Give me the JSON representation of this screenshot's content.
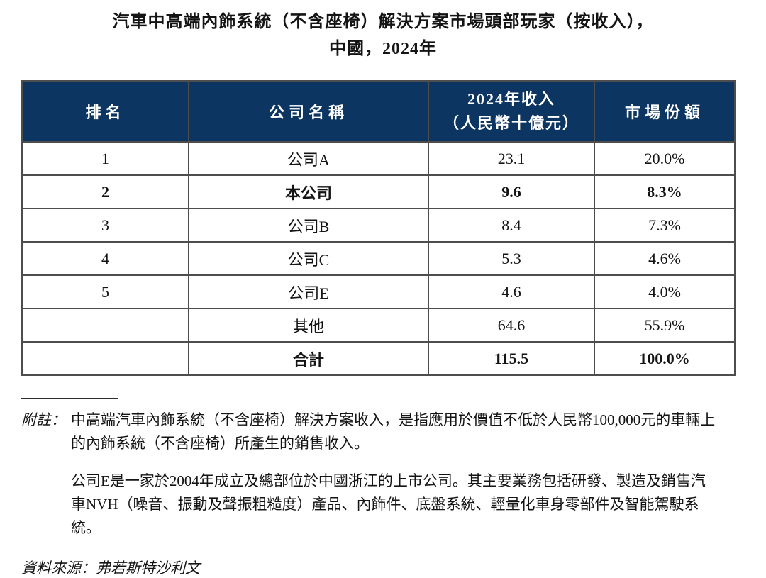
{
  "title": {
    "line1": "汽車中高端內飾系統（不含座椅）解決方案市場頭部玩家（按收入），",
    "line2": "中國，2024年"
  },
  "table": {
    "headers": {
      "rank": "排名",
      "company": "公司名稱",
      "revenue_line1": "2024年收入",
      "revenue_line2": "（人民幣十億元）",
      "share": "市場份額"
    },
    "rows": [
      {
        "rank": "1",
        "company": "公司A",
        "revenue": "23.1",
        "share": "20.0%",
        "bold": false
      },
      {
        "rank": "2",
        "company": "本公司",
        "revenue": "9.6",
        "share": "8.3%",
        "bold": true
      },
      {
        "rank": "3",
        "company": "公司B",
        "revenue": "8.4",
        "share": "7.3%",
        "bold": false
      },
      {
        "rank": "4",
        "company": "公司C",
        "revenue": "5.3",
        "share": "4.6%",
        "bold": false
      },
      {
        "rank": "5",
        "company": "公司E",
        "revenue": "4.6",
        "share": "4.0%",
        "bold": false
      },
      {
        "rank": "",
        "company": "其他",
        "revenue": "64.6",
        "share": "55.9%",
        "bold": false
      },
      {
        "rank": "",
        "company": "合計",
        "revenue": "115.5",
        "share": "100.0%",
        "bold": true
      }
    ]
  },
  "notes": {
    "label": "附註：",
    "note1": "中高端汽車內飾系統（不含座椅）解決方案收入，是指應用於價值不低於人民幣100,000元的車輛上的內飾系統（不含座椅）所產生的銷售收入。",
    "note2": "公司E是一家於2004年成立及總部位於中國浙江的上市公司。其主要業務包括研發、製造及銷售汽車NVH（噪音、振動及聲振粗糙度）產品、內飾件、底盤系統、輕量化車身零部件及智能駕駛系統。",
    "source": "資料來源：弗若斯特沙利文"
  },
  "colors": {
    "header_bg": "#0d3561",
    "header_text": "#ffffff",
    "border": "#4d4d4d"
  },
  "chart_data": {
    "type": "table",
    "title": "汽車中高端內飾系統（不含座椅）解決方案市場頭部玩家（按收入），中國，2024年",
    "columns": [
      "排名",
      "公司名稱",
      "2024年收入（人民幣十億元）",
      "市場份額"
    ],
    "rows": [
      [
        "1",
        "公司A",
        23.1,
        "20.0%"
      ],
      [
        "2",
        "本公司",
        9.6,
        "8.3%"
      ],
      [
        "3",
        "公司B",
        8.4,
        "7.3%"
      ],
      [
        "4",
        "公司C",
        5.3,
        "4.6%"
      ],
      [
        "5",
        "公司E",
        4.6,
        "4.0%"
      ],
      [
        "",
        "其他",
        64.6,
        "55.9%"
      ],
      [
        "",
        "合計",
        115.5,
        "100.0%"
      ]
    ]
  }
}
